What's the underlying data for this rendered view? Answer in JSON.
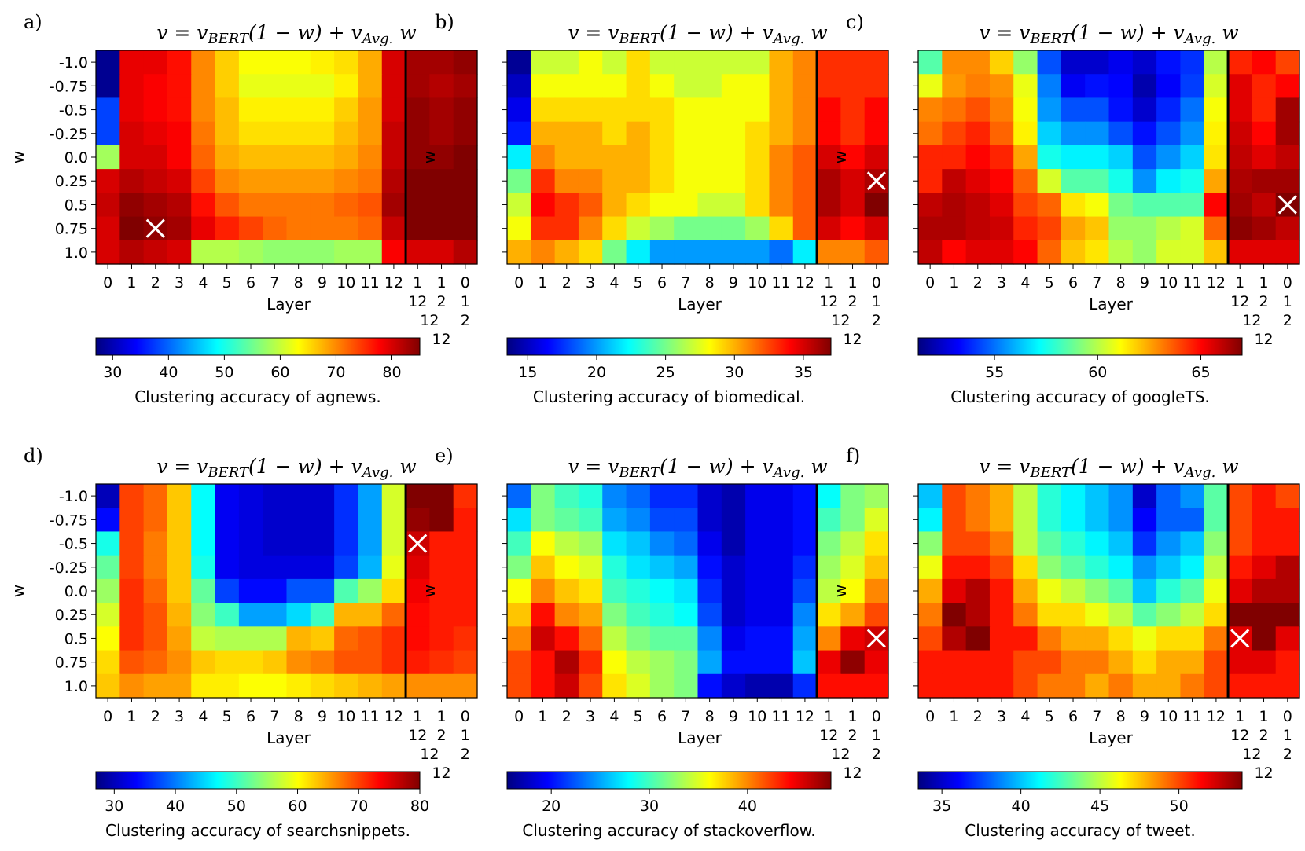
{
  "figure": {
    "rows_w": [
      "-1.0",
      "-0.75",
      "-0.5",
      "-0.25",
      "0.0",
      "0.25",
      "0.5",
      "0.75",
      "1.0"
    ],
    "xticks": [
      "0",
      "1",
      "2",
      "3",
      "4",
      "5",
      "6",
      "7",
      "8",
      "9",
      "10",
      "11",
      "12"
    ],
    "extra_ticks": [
      [
        "1",
        "12"
      ],
      [
        "1",
        "2",
        "12"
      ],
      [
        "0",
        "1",
        "2",
        "12"
      ]
    ],
    "ylabel": "w",
    "xlabel": "Layer"
  },
  "chart_data": [
    {
      "type": "heatmap",
      "panel": "a)",
      "title_parts": [
        "v = v",
        "BERT",
        "(1 − w) + v",
        "Avg.",
        " w"
      ],
      "colorbar_label": "Clustering accuracy of agnews.",
      "vmin": 27,
      "vmax": 85,
      "colorbar_ticks": [
        30,
        40,
        50,
        60,
        70,
        80
      ],
      "marker": [
        2,
        7
      ],
      "values": [
        [
          28,
          79,
          79,
          77,
          70,
          66,
          63,
          63,
          63,
          64,
          65,
          68,
          80,
          83,
          83,
          84
        ],
        [
          28,
          79,
          78,
          77,
          70,
          66,
          62,
          62,
          62,
          62,
          64,
          68,
          80,
          83,
          82,
          83
        ],
        [
          38,
          79,
          78,
          77,
          70,
          67,
          64,
          64,
          64,
          64,
          66,
          69,
          80,
          84,
          83,
          84
        ],
        [
          38,
          80,
          79,
          78,
          71,
          67,
          65,
          65,
          65,
          65,
          67,
          69,
          81,
          84,
          83,
          84
        ],
        [
          58,
          80,
          80,
          78,
          72,
          68,
          67,
          67,
          67,
          67,
          68,
          70,
          81,
          84,
          84,
          85
        ],
        [
          80,
          82,
          81,
          80,
          74,
          70,
          69,
          69,
          69,
          69,
          70,
          71,
          82,
          86,
          86,
          88
        ],
        [
          81,
          84,
          83,
          82,
          77,
          73,
          71,
          71,
          71,
          71,
          72,
          73,
          83,
          87,
          87,
          88
        ],
        [
          80,
          85,
          84,
          83,
          79,
          76,
          74,
          72,
          71,
          71,
          71,
          72,
          81,
          87,
          87,
          86
        ],
        [
          80,
          82,
          81,
          80,
          59,
          59,
          58,
          57,
          57,
          57,
          58,
          58,
          78,
          80,
          80,
          82
        ]
      ]
    },
    {
      "type": "heatmap",
      "panel": "b)",
      "title_parts": [
        "v = v",
        "BERT",
        "(1 − w) + v",
        "Avg.",
        " w"
      ],
      "colorbar_label": "Clustering accuracy of biomedical.",
      "vmin": 13.5,
      "vmax": 37,
      "colorbar_ticks": [
        15,
        20,
        25,
        30,
        35
      ],
      "marker": [
        15,
        5
      ],
      "values": [
        [
          14,
          27,
          27,
          28,
          27,
          29,
          27,
          27,
          27,
          27,
          27,
          30,
          31,
          33,
          33,
          33
        ],
        [
          15,
          28,
          28,
          28,
          28,
          29,
          28,
          27,
          27,
          28,
          28,
          30,
          31,
          33,
          33,
          33
        ],
        [
          16,
          29,
          29,
          29,
          29,
          29,
          29,
          28,
          28,
          28,
          28,
          30,
          31,
          34,
          33,
          34
        ],
        [
          17,
          30,
          30,
          30,
          29,
          30,
          29,
          28,
          28,
          28,
          29,
          30,
          31,
          34,
          33,
          34
        ],
        [
          22,
          31,
          30,
          30,
          30,
          30,
          29,
          28,
          28,
          28,
          29,
          31,
          32,
          35,
          34,
          35
        ],
        [
          25,
          33,
          31,
          31,
          30,
          30,
          29,
          28,
          28,
          28,
          29,
          31,
          32,
          36,
          35,
          36
        ],
        [
          27,
          34,
          33,
          32,
          30,
          29,
          28,
          28,
          27,
          27,
          29,
          31,
          32,
          36,
          35,
          37
        ],
        [
          28,
          33,
          33,
          31,
          29,
          27,
          26,
          25,
          25,
          25,
          26,
          29,
          32,
          35,
          34,
          35
        ],
        [
          30,
          31,
          30,
          29,
          25,
          22,
          20,
          20,
          20,
          20,
          20,
          19,
          22,
          31,
          31,
          32
        ]
      ]
    },
    {
      "type": "heatmap",
      "panel": "c)",
      "title_parts": [
        "v = v",
        "BERT",
        "(1 − w) + v",
        "Avg.",
        " w"
      ],
      "colorbar_label": "Clustering accuracy of googleTS.",
      "vmin": 51.3,
      "vmax": 67,
      "colorbar_ticks": [
        55,
        60,
        65
      ],
      "marker": [
        15,
        6
      ],
      "values": [
        [
          58.5,
          62.9,
          62.9,
          61.8,
          59.5,
          54.5,
          52.5,
          52.5,
          53,
          52.5,
          53.5,
          54,
          60,
          64.5,
          65,
          64
        ],
        [
          60.8,
          62.7,
          63.1,
          62.8,
          60.8,
          55.2,
          53.1,
          53.5,
          53.3,
          52,
          53.2,
          54.2,
          60.5,
          65.5,
          64.5,
          65
        ],
        [
          63,
          63.3,
          63.8,
          63.1,
          61,
          55.6,
          54.5,
          54.5,
          53.5,
          52.5,
          53.8,
          55,
          61,
          65.5,
          64.5,
          66.5
        ],
        [
          63.3,
          64,
          64.5,
          63.5,
          61.3,
          56.5,
          55.5,
          55.5,
          54.5,
          53.5,
          54.5,
          55.5,
          61.3,
          65.8,
          65,
          66.5
        ],
        [
          64.5,
          64.5,
          65,
          64.5,
          62.5,
          57.5,
          57,
          57,
          56.5,
          54.5,
          55.5,
          56.5,
          61.5,
          66,
          65.5,
          66
        ],
        [
          64.5,
          66,
          65.5,
          65,
          63.5,
          60.5,
          58.5,
          58.5,
          57.5,
          55.5,
          57,
          57.5,
          62.5,
          66.3,
          66.5,
          66.5
        ],
        [
          66,
          66.3,
          66,
          65.5,
          64,
          63.5,
          61.5,
          61,
          59,
          58.5,
          58.5,
          58.5,
          65,
          66.5,
          66,
          67
        ],
        [
          66.3,
          66.3,
          66,
          65.8,
          64.5,
          64,
          62.5,
          62,
          59.5,
          59.5,
          60,
          60.5,
          63.5,
          66.8,
          66.5,
          66
        ],
        [
          66,
          65,
          65.5,
          65.5,
          65,
          63.5,
          62,
          61.5,
          60,
          59.5,
          60.5,
          60.5,
          62,
          65.5,
          65.5,
          65.5
        ]
      ]
    },
    {
      "type": "heatmap",
      "panel": "d)",
      "title_parts": [
        "v = v",
        "BERT",
        "(1 − w) + v",
        "Avg.",
        " w"
      ],
      "colorbar_label": "Clustering accuracy of searchsnippets.",
      "vmin": 27,
      "vmax": 80,
      "colorbar_ticks": [
        30,
        40,
        50,
        60,
        70,
        80
      ],
      "marker": [
        13,
        2
      ],
      "values": [
        [
          30,
          70,
          68,
          63,
          47,
          33,
          32,
          31,
          31,
          31,
          36,
          42,
          58,
          82,
          80,
          71
        ],
        [
          34,
          70,
          68,
          63,
          47,
          33,
          32,
          31,
          31,
          31,
          36,
          42,
          58,
          79,
          80,
          72
        ],
        [
          48,
          70,
          67,
          63,
          47,
          33,
          32,
          31,
          31,
          31,
          36,
          42,
          58,
          76,
          72,
          72
        ],
        [
          52,
          70,
          67,
          63,
          48,
          33,
          32,
          32,
          32,
          32,
          37,
          43,
          59,
          75,
          72,
          72
        ],
        [
          55,
          71,
          68,
          63,
          52,
          37,
          34,
          34,
          38,
          38,
          51,
          55,
          62,
          74,
          72,
          72
        ],
        [
          58,
          71,
          69,
          64,
          54,
          50,
          42,
          42,
          45,
          50,
          64,
          64,
          68,
          73,
          72,
          72
        ],
        [
          60,
          71,
          69,
          65,
          57,
          56,
          56,
          56,
          64,
          63,
          68,
          69,
          71,
          73,
          72,
          71
        ],
        [
          62,
          69,
          68,
          66,
          63,
          62,
          62,
          63,
          66,
          67,
          69,
          69,
          71,
          72,
          71,
          70
        ],
        [
          63,
          66,
          65,
          65,
          61,
          61,
          60,
          60,
          61,
          62,
          63,
          64,
          65,
          66,
          66,
          66
        ]
      ]
    },
    {
      "type": "heatmap",
      "panel": "e)",
      "title_parts": [
        "v = v",
        "BERT",
        "(1 − w) + v",
        "Avg.",
        " w"
      ],
      "colorbar_label": "Clustering accuracy of stackoverflow.",
      "vmin": 15.5,
      "vmax": 48.5,
      "colorbar_ticks": [
        20,
        30,
        40
      ],
      "marker": [
        15,
        6
      ],
      "values": [
        [
          23,
          32,
          30,
          29,
          24,
          23,
          21,
          21,
          18,
          17,
          19,
          19,
          20,
          28,
          32,
          33
        ],
        [
          27,
          32,
          31,
          30,
          25,
          24,
          22,
          22,
          18,
          17,
          19,
          19,
          20,
          30,
          32,
          35
        ],
        [
          30,
          36,
          34,
          33,
          27,
          26,
          24,
          23,
          19,
          17,
          19,
          19,
          20,
          32,
          34,
          37
        ],
        [
          32,
          38,
          36,
          35,
          29,
          27,
          26,
          25,
          20,
          18,
          19,
          19,
          21,
          33,
          35,
          38
        ],
        [
          36,
          40,
          38,
          37,
          30,
          29,
          28,
          27,
          21,
          18,
          19,
          19,
          22,
          34,
          36,
          40
        ],
        [
          38,
          44,
          40,
          39,
          32,
          30,
          29,
          28,
          22,
          18,
          19,
          19,
          24,
          37,
          39,
          42
        ],
        [
          40,
          46,
          44,
          41,
          34,
          32,
          31,
          31,
          24,
          19,
          20,
          20,
          25,
          40,
          45,
          46
        ],
        [
          42,
          44,
          47,
          43,
          36,
          34,
          33,
          32,
          25,
          20,
          20,
          20,
          26,
          45,
          48,
          45
        ],
        [
          42,
          44,
          46,
          42,
          37,
          35,
          33,
          32,
          20,
          18,
          17,
          17,
          21,
          44,
          44,
          44
        ]
      ]
    },
    {
      "type": "heatmap",
      "panel": "f)",
      "title_parts": [
        "v = v",
        "BERT",
        "(1 − w) + v",
        "Avg.",
        " w"
      ],
      "colorbar_label": "Clustering accuracy of tweet.",
      "vmin": 33.5,
      "vmax": 54,
      "colorbar_ticks": [
        35,
        40,
        45,
        50
      ],
      "marker": [
        13,
        6
      ],
      "values": [
        [
          40,
          50,
          49,
          48,
          45,
          42,
          41,
          40,
          39,
          35,
          38,
          39,
          43,
          50,
          51,
          50
        ],
        [
          41,
          50,
          49,
          48,
          45,
          42,
          41,
          40,
          39,
          36,
          38,
          38,
          43,
          50,
          51,
          51
        ],
        [
          44,
          50,
          50,
          49,
          45,
          43,
          42,
          41,
          40,
          37,
          39,
          40,
          44,
          50,
          51,
          51
        ],
        [
          46,
          51,
          51,
          50,
          47,
          44,
          43,
          42,
          41,
          39,
          40,
          41,
          45,
          51,
          52,
          53
        ],
        [
          48,
          52,
          53,
          51,
          48,
          46,
          45,
          44,
          43,
          40,
          42,
          43,
          46,
          52,
          53,
          53
        ],
        [
          49,
          54,
          53,
          51,
          49,
          47,
          47,
          46,
          45,
          43,
          44,
          45,
          47,
          54,
          54,
          54
        ],
        [
          50,
          53,
          54,
          51,
          51,
          49,
          48,
          48,
          47,
          46,
          47,
          47,
          49,
          52,
          54,
          52
        ],
        [
          51,
          51,
          51,
          51,
          50,
          50,
          49,
          49,
          48,
          47,
          48,
          48,
          50,
          52,
          52,
          51
        ],
        [
          51,
          51,
          51,
          51,
          50,
          49,
          49,
          48,
          49,
          48,
          48,
          49,
          50,
          51,
          51,
          51
        ]
      ]
    }
  ]
}
